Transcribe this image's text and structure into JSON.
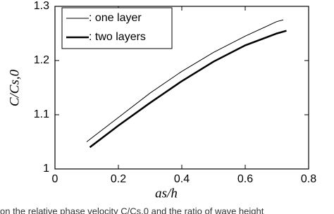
{
  "chart_data": {
    "type": "line",
    "xlabel": "as/h",
    "ylabel": "C/Cs,0",
    "caption": "on the relative phase velocity C/Cs,0 and the ratio of wave height",
    "xlim": [
      0,
      0.8
    ],
    "xticks": [
      0,
      0.2,
      0.4,
      0.6,
      0.8
    ],
    "ylim": [
      1,
      1.3
    ],
    "yticks": [
      1,
      1.1,
      1.2,
      1.3
    ],
    "legend": "upper-left",
    "series": [
      {
        "name": ": one layer",
        "color": "#000000",
        "line_width": 1,
        "x": [
          0.1,
          0.2,
          0.3,
          0.4,
          0.5,
          0.6,
          0.7,
          0.72
        ],
        "values": [
          1.05,
          1.095,
          1.14,
          1.18,
          1.215,
          1.245,
          1.272,
          1.275
        ]
      },
      {
        "name": ": two layers",
        "color": "#000000",
        "line_width": 2.5,
        "x": [
          0.11,
          0.2,
          0.3,
          0.4,
          0.5,
          0.6,
          0.7,
          0.73
        ],
        "values": [
          1.04,
          1.08,
          1.122,
          1.162,
          1.198,
          1.228,
          1.25,
          1.255
        ]
      }
    ]
  }
}
